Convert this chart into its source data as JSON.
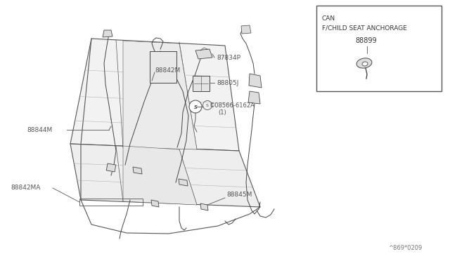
{
  "bg_color": "#ffffff",
  "fig_width": 6.4,
  "fig_height": 3.72,
  "watermark": "^869*0209",
  "box_label_line1": "CAN",
  "box_label_line2": "F/CHILD SEAT ANCHORAGE",
  "box_part": "88899",
  "label_color": "#555555",
  "line_color": "#444444",
  "seat_fill": "#f0f0f0",
  "seat_edge": "#555555",
  "part_fill": "#dddddd",
  "part_edge": "#444444"
}
